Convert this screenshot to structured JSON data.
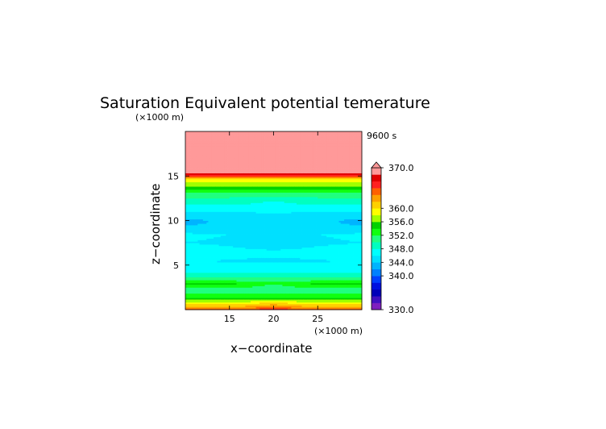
{
  "chart_data": {
    "type": "heatmap",
    "title": "Saturation Equivalent potential temerature",
    "time_label": "9600 s",
    "xlabel": "x−coordinate",
    "ylabel": "z−coordinate",
    "x_unit": "(×1000 m)",
    "y_unit": "(×1000 m)",
    "xlim": [
      10,
      30
    ],
    "ylim": [
      0,
      20
    ],
    "x_ticks": [
      15,
      20,
      25
    ],
    "y_ticks": [
      5,
      10,
      15
    ],
    "x_tick_labels": [
      "15",
      "20",
      "25"
    ],
    "y_tick_labels": [
      "5",
      "10",
      "15"
    ],
    "colorbar": {
      "min": 330,
      "max": 370,
      "step": 2,
      "labels": [
        "370.0",
        "360.0",
        "356.0",
        "352.0",
        "348.0",
        "344.0",
        "340.0",
        "330.0"
      ],
      "label_values": [
        370,
        360,
        356,
        352,
        348,
        344,
        340,
        330
      ],
      "colors": [
        "#7f1fbf",
        "#4010c0",
        "#0000b8",
        "#0010e0",
        "#0040ff",
        "#0080ff",
        "#00b4ff",
        "#00e0ff",
        "#00ffff",
        "#00ffc0",
        "#20ff80",
        "#10ff10",
        "#00d000",
        "#a0ff00",
        "#ffff00",
        "#ffd000",
        "#ffa000",
        "#ff6000",
        "#ff2020",
        "#e00000",
        "#ff9999"
      ],
      "extend_top": true
    },
    "profile": {
      "z": [
        0,
        0.25,
        0.5,
        0.8,
        1.1,
        1.5,
        2.0,
        2.5,
        2.9,
        3.3,
        3.8,
        4.5,
        5.5,
        6.5,
        7.5,
        8.5,
        9.5,
        10.5,
        11.5,
        12.0,
        12.5,
        13.0,
        13.4,
        13.8,
        14.2,
        14.6,
        15.0,
        15.5,
        16.0,
        20.0
      ],
      "theta": [
        366,
        363,
        361,
        359,
        356,
        353,
        351,
        350.5,
        352.5,
        351.5,
        349,
        347,
        346,
        347.5,
        346,
        346.5,
        345.5,
        345,
        347.5,
        348.5,
        350,
        351.5,
        353,
        355.5,
        357.5,
        359.5,
        366,
        374,
        376,
        378
      ]
    }
  }
}
